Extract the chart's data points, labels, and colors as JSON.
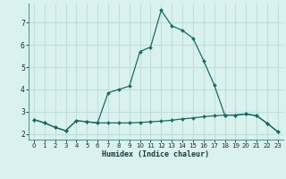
{
  "xlabel": "Humidex (Indice chaleur)",
  "background_color": "#d9f2f0",
  "grid_color": "#c0dedd",
  "line_color": "#1a6b60",
  "xlim": [
    -0.5,
    23.5
  ],
  "ylim": [
    1.75,
    7.85
  ],
  "yticks": [
    2,
    3,
    4,
    5,
    6,
    7
  ],
  "xticks": [
    0,
    1,
    2,
    3,
    4,
    5,
    6,
    7,
    8,
    9,
    10,
    11,
    12,
    13,
    14,
    15,
    16,
    17,
    18,
    19,
    20,
    21,
    22,
    23
  ],
  "series1_x": [
    0,
    1,
    2,
    3,
    4,
    5,
    6,
    7,
    8,
    9,
    10,
    11,
    12,
    13,
    14,
    15,
    16,
    17,
    18,
    19,
    20,
    21,
    22,
    23
  ],
  "series1_y": [
    2.65,
    2.5,
    2.3,
    2.15,
    2.6,
    2.55,
    2.5,
    2.5,
    2.5,
    2.5,
    2.52,
    2.55,
    2.58,
    2.62,
    2.68,
    2.72,
    2.78,
    2.82,
    2.85,
    2.85,
    2.9,
    2.82,
    2.48,
    2.1
  ],
  "series2_x": [
    0,
    1,
    2,
    3,
    4,
    5,
    6,
    7,
    8,
    9,
    10,
    11,
    12,
    13,
    14,
    15,
    16,
    17,
    18,
    19,
    20,
    21,
    22,
    23
  ],
  "series2_y": [
    2.65,
    2.5,
    2.3,
    2.15,
    2.6,
    2.55,
    2.5,
    3.85,
    4.0,
    4.15,
    5.7,
    5.9,
    7.55,
    6.85,
    6.65,
    6.3,
    5.3,
    4.2,
    2.85,
    2.85,
    2.9,
    2.82,
    2.48,
    2.1
  ]
}
